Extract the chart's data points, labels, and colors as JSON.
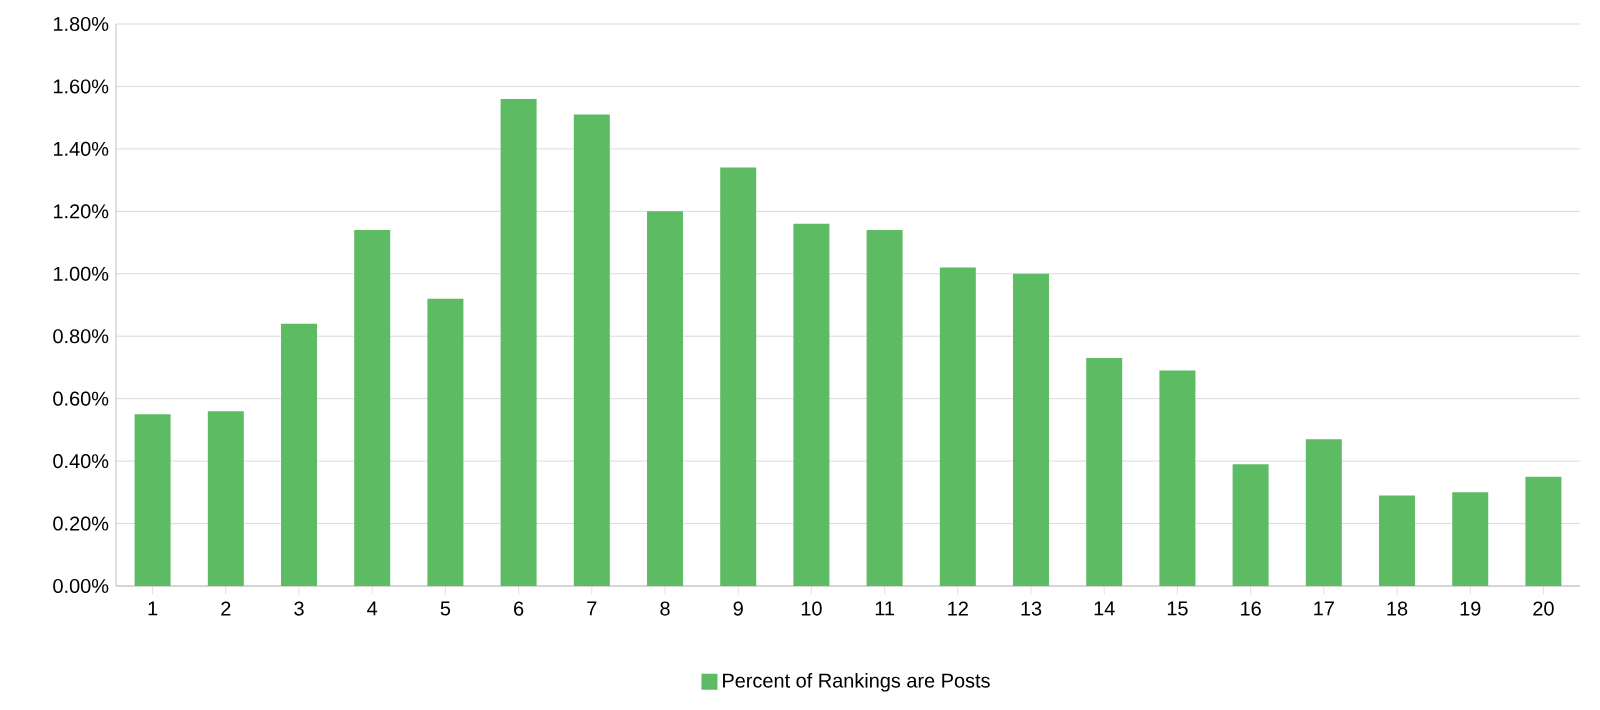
{
  "chart_data": {
    "type": "bar",
    "categories": [
      "1",
      "2",
      "3",
      "4",
      "5",
      "6",
      "7",
      "8",
      "9",
      "10",
      "11",
      "12",
      "13",
      "14",
      "15",
      "16",
      "17",
      "18",
      "19",
      "20"
    ],
    "series": [
      {
        "name": "Percent of Rankings are Posts",
        "color": "#5dbb63",
        "values": [
          0.55,
          0.56,
          0.84,
          1.14,
          0.92,
          1.56,
          1.51,
          1.2,
          1.34,
          1.16,
          1.14,
          1.02,
          1.0,
          0.73,
          0.69,
          0.39,
          0.47,
          0.29,
          0.3,
          0.35
        ]
      }
    ],
    "ylim": [
      0,
      1.8
    ],
    "yticks": [
      {
        "value": 0,
        "label": "0.00%"
      },
      {
        "value": 0.2,
        "label": "0.20%"
      },
      {
        "value": 0.4,
        "label": "0.40%"
      },
      {
        "value": 0.6,
        "label": "0.60%"
      },
      {
        "value": 0.8,
        "label": "0.80%"
      },
      {
        "value": 1.0,
        "label": "1.00%"
      },
      {
        "value": 1.2,
        "label": "1.20%"
      },
      {
        "value": 1.4,
        "label": "1.40%"
      },
      {
        "value": 1.6,
        "label": "1.60%"
      },
      {
        "value": 1.8,
        "label": "1.80%"
      }
    ],
    "grid": "y",
    "legend": "bottom"
  }
}
